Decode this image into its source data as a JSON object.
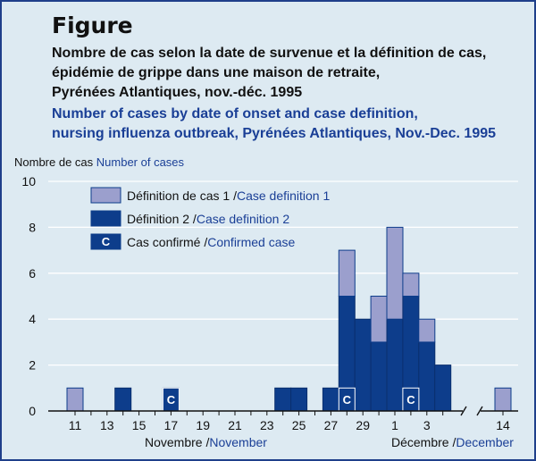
{
  "figure_label": "Figure",
  "title_fr": [
    "Nombre de cas selon la date de survenue et la définition de cas,",
    "épidémie de grippe dans une maison de retraite,",
    "Pyrénées Atlantiques, nov.-déc. 1995"
  ],
  "title_en": [
    "Number of cases by date of onset and case definition,",
    "nursing influenza outbreak, Pyrénées Atlantiques, Nov.-Dec. 1995"
  ],
  "colors": {
    "background": "#ddeaf2",
    "def1": "#9b9fcd",
    "def2": "#0d3d8b",
    "text_en": "#1a3f96"
  },
  "chart_data": {
    "type": "bar",
    "stacked": true,
    "ylabel_fr": "Nombre de cas",
    "ylabel_en": "Number of cases",
    "ylim": [
      0,
      10
    ],
    "yticks": [
      0,
      2,
      4,
      6,
      8,
      10
    ],
    "grid": "horizontal",
    "legend_position": "top-left",
    "x_axis_break": "between 4 and 14 December",
    "categories": [
      "11",
      "12",
      "13",
      "14",
      "15",
      "16",
      "17",
      "18",
      "19",
      "20",
      "21",
      "22",
      "23",
      "24",
      "25",
      "26",
      "27",
      "28",
      "29",
      "30",
      "1",
      "2",
      "3",
      "4",
      "14"
    ],
    "xtick_labels": [
      "11",
      "13",
      "15",
      "17",
      "19",
      "21",
      "23",
      "25",
      "27",
      "29",
      "1",
      "3",
      "14"
    ],
    "month_labels": [
      {
        "fr": "Novembre",
        "en": "November"
      },
      {
        "fr": "Décembre",
        "en": "December"
      }
    ],
    "series": [
      {
        "name": "Définition 2",
        "name_en": "Case definition 2",
        "values": [
          0,
          0,
          0,
          1,
          0,
          0,
          1,
          0,
          0,
          0,
          0,
          0,
          0,
          1,
          1,
          0,
          1,
          5,
          4,
          3,
          4,
          5,
          3,
          2,
          0
        ]
      },
      {
        "name": "Définition de cas 1",
        "name_en": "Case definition 1",
        "values": [
          1,
          0,
          0,
          0,
          0,
          0,
          0,
          0,
          0,
          0,
          0,
          0,
          0,
          0,
          0,
          0,
          0,
          2,
          0,
          2,
          4,
          1,
          1,
          0,
          1
        ]
      }
    ],
    "confirmed_cases": [
      "17",
      "28",
      "2"
    ],
    "confirmed_marker": "C",
    "legend": [
      {
        "fr": "Définition de cas 1",
        "en": "Case definition 1",
        "color": "#9b9fcd"
      },
      {
        "fr": "Définition 2",
        "en": "Case definition 2",
        "color": "#0d3d8b"
      },
      {
        "fr": "Cas confirmé",
        "en": "Confirmed case",
        "color": "#0d3d8b",
        "marker": "C"
      }
    ],
    "legend_separator": "/"
  }
}
